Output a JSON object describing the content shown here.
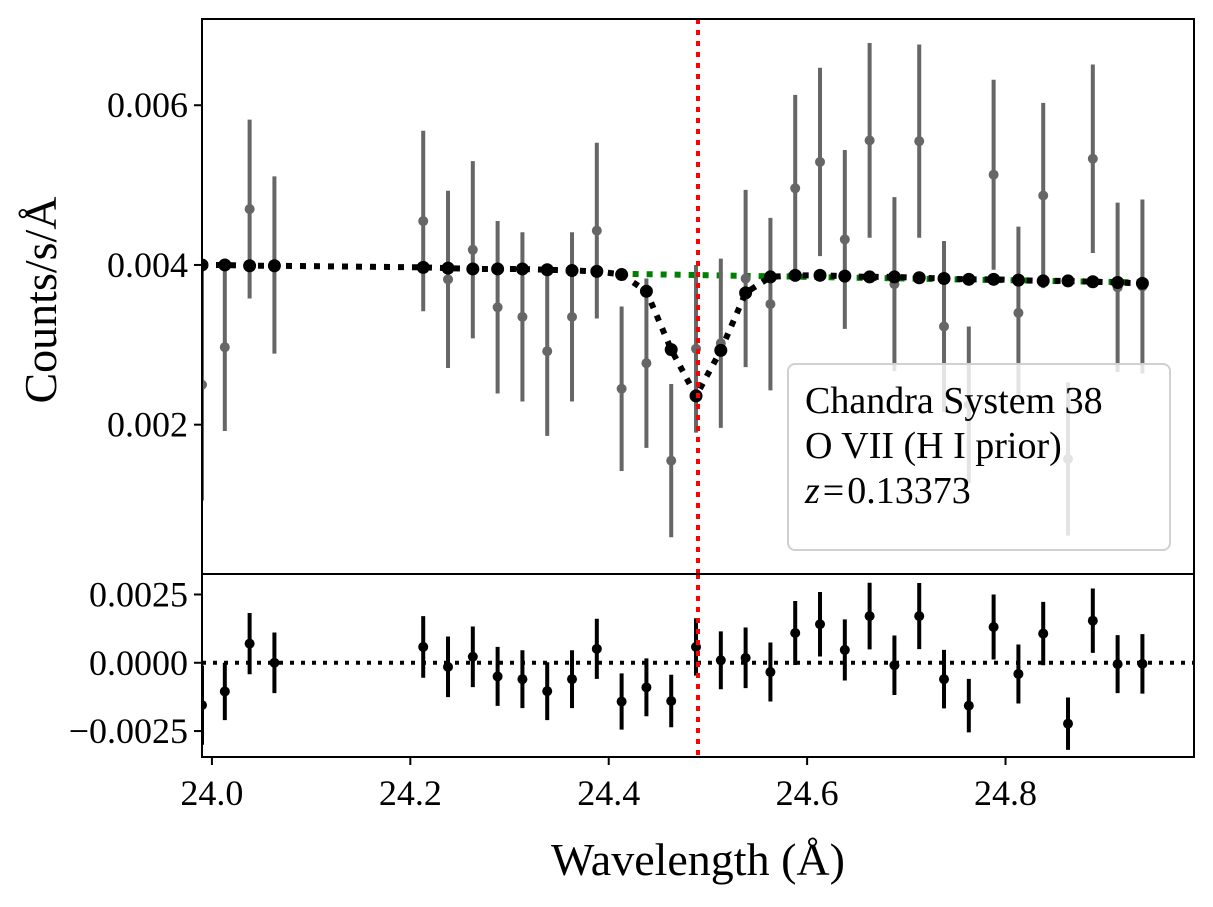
{
  "chart_data": {
    "type": "scatter",
    "legend": {
      "lines": [
        "Chandra System 38",
        "O VII (H I prior)"
      ],
      "z_label": "z",
      "z_equals": "=",
      "z_value": "0.13373",
      "placement": "lower-right"
    },
    "xlabel": "Wavelength (Å)",
    "xlim": [
      23.99,
      24.99
    ],
    "x_ticks": [
      24.0,
      24.2,
      24.4,
      24.6,
      24.8
    ],
    "x_tick_labels": [
      "24.0",
      "24.2",
      "24.4",
      "24.6",
      "24.8"
    ],
    "reference_line_x": 24.49,
    "top_panel": {
      "ylabel": "Counts/s/Å",
      "ylim": [
        0.00013,
        0.00708
      ],
      "y_ticks": [
        0.002,
        0.004,
        0.006
      ],
      "y_tick_labels": [
        "0.002",
        "0.004",
        "0.006"
      ],
      "data": {
        "name": "data",
        "x": [
          23.99,
          24.013,
          24.038,
          24.063,
          24.213,
          24.238,
          24.263,
          24.288,
          24.313,
          24.338,
          24.363,
          24.388,
          24.413,
          24.438,
          24.463,
          24.488,
          24.513,
          24.538,
          24.563,
          24.588,
          24.613,
          24.638,
          24.663,
          24.688,
          24.713,
          24.738,
          24.763,
          24.788,
          24.813,
          24.838,
          24.863,
          24.888,
          24.913,
          24.938
        ],
        "y": [
          0.0025,
          0.00297,
          0.0047,
          0.004,
          0.00455,
          0.00382,
          0.00419,
          0.00347,
          0.00335,
          0.00292,
          0.00335,
          0.00443,
          0.00245,
          0.00277,
          0.00155,
          0.00295,
          0.00302,
          0.00383,
          0.00351,
          0.00496,
          0.00529,
          0.00432,
          0.00556,
          0.00376,
          0.00555,
          0.00323,
          0.00225,
          0.00513,
          0.0034,
          0.00487,
          0.00157,
          0.00533,
          0.00372,
          0.00373
        ],
        "yerr": [
          0.00145,
          0.00105,
          0.00112,
          0.00111,
          0.00113,
          0.00111,
          0.00111,
          0.00108,
          0.00106,
          0.00106,
          0.00106,
          0.0011,
          0.00103,
          0.00106,
          0.00096,
          0.00105,
          0.00106,
          0.00111,
          0.00108,
          0.00117,
          0.00118,
          0.00112,
          0.00122,
          0.00109,
          0.00121,
          0.00107,
          0.00098,
          0.00119,
          0.00108,
          0.00116,
          0.00096,
          0.00118,
          0.00106,
          0.00109
        ]
      },
      "continuum": {
        "name": "continuum model",
        "color": "#008000",
        "x": [
          24.41,
          24.94
        ],
        "y": [
          0.00389,
          0.00378
        ]
      },
      "model": {
        "name": "absorption model",
        "color": "#000000",
        "x": [
          23.99,
          24.013,
          24.038,
          24.063,
          24.213,
          24.238,
          24.263,
          24.288,
          24.313,
          24.338,
          24.363,
          24.388,
          24.413,
          24.438,
          24.463,
          24.488,
          24.513,
          24.538,
          24.563,
          24.588,
          24.613,
          24.638,
          24.663,
          24.688,
          24.713,
          24.738,
          24.763,
          24.788,
          24.813,
          24.838,
          24.863,
          24.888,
          24.913,
          24.938
        ],
        "y": [
          0.004,
          0.004,
          0.00399,
          0.00399,
          0.00397,
          0.00396,
          0.00395,
          0.00395,
          0.00395,
          0.00394,
          0.00393,
          0.00392,
          0.00388,
          0.00367,
          0.00294,
          0.00236,
          0.00293,
          0.00365,
          0.00385,
          0.00387,
          0.00387,
          0.00386,
          0.00385,
          0.00385,
          0.00384,
          0.00383,
          0.00382,
          0.00382,
          0.00381,
          0.0038,
          0.0038,
          0.00379,
          0.00378,
          0.00377
        ]
      }
    },
    "bottom_panel": {
      "ylabel": "",
      "ylim": [
        -0.00345,
        0.00325
      ],
      "y_ticks": [
        -0.0025,
        0.0,
        0.0025
      ],
      "y_tick_labels": [
        "−0.0025",
        "0.0000",
        "0.0025"
      ],
      "zero_line": 0.0,
      "residuals": {
        "name": "residuals",
        "x": [
          23.99,
          24.013,
          24.038,
          24.063,
          24.213,
          24.238,
          24.263,
          24.288,
          24.313,
          24.338,
          24.363,
          24.388,
          24.413,
          24.438,
          24.463,
          24.488,
          24.513,
          24.538,
          24.563,
          24.588,
          24.613,
          24.638,
          24.663,
          24.688,
          24.713,
          24.738,
          24.763,
          24.788,
          24.813,
          24.838,
          24.863,
          24.888,
          24.913,
          24.938
        ],
        "y": [
          -0.00155,
          -0.00105,
          0.0007,
          0.0,
          0.00058,
          -0.00015,
          0.00022,
          -0.0005,
          -0.0006,
          -0.00104,
          -0.0006,
          0.00051,
          -0.00142,
          -0.0009,
          -0.0014,
          0.00058,
          9e-05,
          0.00018,
          -0.00034,
          0.00109,
          0.00141,
          0.00047,
          0.00171,
          -9e-05,
          0.00171,
          -0.0006,
          -0.00157,
          0.00131,
          -0.00041,
          0.00107,
          -0.00223,
          0.00154,
          -5e-05,
          -4e-05
        ],
        "yerr": [
          0.00145,
          0.00105,
          0.00112,
          0.00111,
          0.00113,
          0.00111,
          0.00111,
          0.00108,
          0.00106,
          0.00106,
          0.00106,
          0.0011,
          0.00103,
          0.00106,
          0.00096,
          0.00105,
          0.00106,
          0.00111,
          0.00108,
          0.00117,
          0.00118,
          0.00112,
          0.00122,
          0.00109,
          0.00121,
          0.00107,
          0.00098,
          0.00119,
          0.00108,
          0.00116,
          0.00096,
          0.00118,
          0.00106,
          0.00109
        ]
      }
    },
    "colors": {
      "data": "#666666",
      "model": "#000000",
      "continuum": "#008000",
      "reference_line": "#ff0000",
      "residuals": "#000000"
    }
  }
}
